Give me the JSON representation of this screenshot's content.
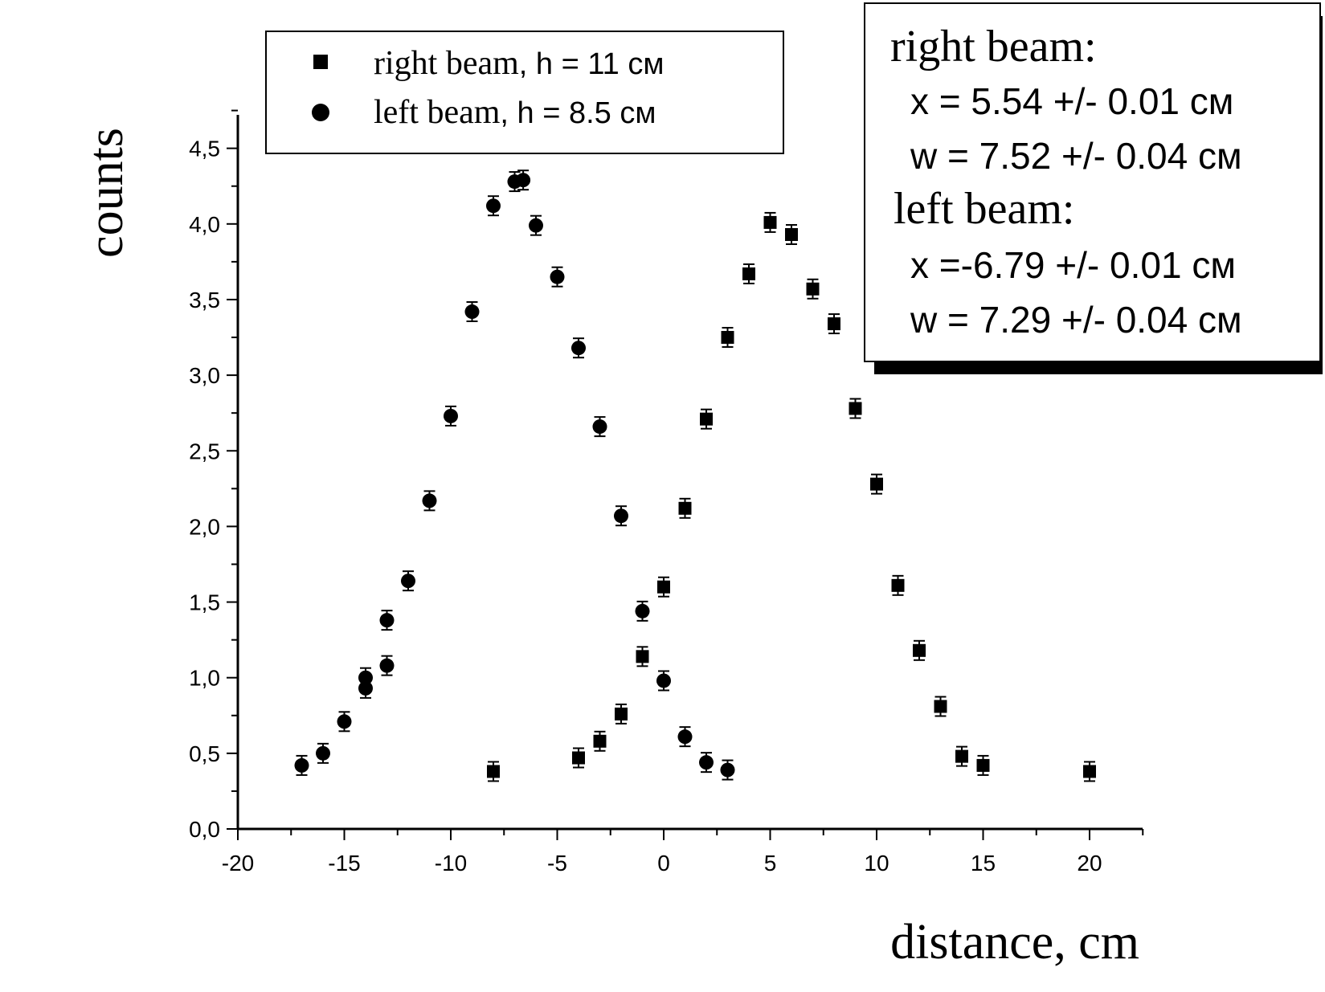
{
  "chart_data": {
    "type": "scatter",
    "xlabel": "distance, cm",
    "ylabel": "counts",
    "xlim": [
      -20,
      22.5
    ],
    "ylim": [
      0,
      4.75
    ],
    "x_ticks": [
      "-20",
      "-15",
      "-10",
      "-5",
      "0",
      "5",
      "10",
      "15",
      "20"
    ],
    "x_tick_values": [
      -20,
      -15,
      -10,
      -5,
      0,
      5,
      10,
      15,
      20
    ],
    "y_ticks": [
      "0,0",
      "0,5",
      "1,0",
      "1,5",
      "2,0",
      "2,5",
      "3,0",
      "3,5",
      "4,0",
      "4,5"
    ],
    "y_tick_values": [
      0,
      0.5,
      1.0,
      1.5,
      2.0,
      2.5,
      3.0,
      3.5,
      4.0,
      4.5
    ],
    "grid": false,
    "legend_position": "top-left",
    "series": [
      {
        "name_parts": [
          "right beam",
          ",  h = 11  см"
        ],
        "marker": "square",
        "color": "#000000",
        "x": [
          -8,
          -4,
          -3,
          -2,
          -1,
          0,
          1,
          2,
          3,
          4,
          5,
          6,
          7,
          8,
          9,
          10,
          11,
          12,
          13,
          14,
          15,
          20
        ],
        "y": [
          0.38,
          0.47,
          0.58,
          0.76,
          1.14,
          1.6,
          2.12,
          2.71,
          3.25,
          3.67,
          4.01,
          3.93,
          3.57,
          3.34,
          2.78,
          2.28,
          1.61,
          1.18,
          0.81,
          0.48,
          0.42,
          0.38
        ]
      },
      {
        "name_parts": [
          "left beam",
          ", h = 8.5 см"
        ],
        "marker": "circle",
        "color": "#000000",
        "x": [
          -17,
          -16,
          -15,
          -14,
          -14,
          -13,
          -13,
          -12,
          -11,
          -10,
          -9,
          -8,
          -7,
          -6.6,
          -6,
          -5,
          -4,
          -3,
          -2,
          -1,
          0,
          1,
          2,
          3
        ],
        "y": [
          0.42,
          0.5,
          0.71,
          0.93,
          1.0,
          1.08,
          1.38,
          1.64,
          2.17,
          2.73,
          3.42,
          4.12,
          4.28,
          4.29,
          3.99,
          3.65,
          3.18,
          2.66,
          2.07,
          1.44,
          0.98,
          0.61,
          0.44,
          0.39
        ]
      }
    ],
    "annotation": {
      "right_beam_label": "right beam:",
      "right_x": "x = 5.54 +/- 0.01 см",
      "right_w": "w = 7.52 +/- 0.04 см",
      "left_beam_label": "left beam:",
      "left_x": "x =-6.79 +/- 0.01 см",
      "left_w": "w = 7.29 +/- 0.04 см"
    }
  }
}
